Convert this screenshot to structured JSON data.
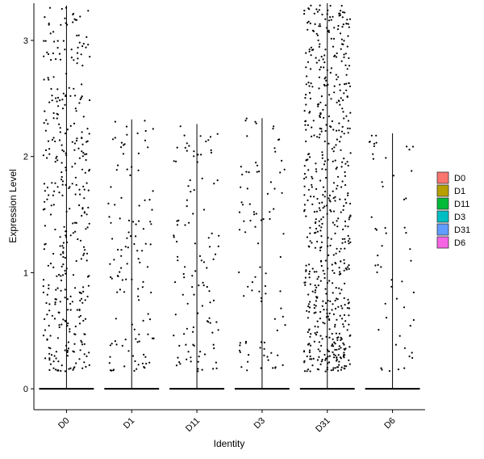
{
  "chart_data": {
    "type": "scatter",
    "plot_style": "violin-jitter",
    "title": "",
    "xlabel": "Identity",
    "ylabel": "Expression Level",
    "ylim": [
      -0.18,
      3.32
    ],
    "y_ticks": [
      0,
      1,
      2,
      3
    ],
    "grid": false,
    "legend": "right",
    "categories": [
      "D0",
      "D1",
      "D11",
      "D3",
      "D31",
      "D6"
    ],
    "legend_entries": [
      {
        "label": "D0",
        "color": "#F8766D"
      },
      {
        "label": "D1",
        "color": "#B79F00"
      },
      {
        "label": "D11",
        "color": "#00BA38"
      },
      {
        "label": "D3",
        "color": "#00BFC4"
      },
      {
        "label": "D31",
        "color": "#619CFF"
      },
      {
        "label": "D6",
        "color": "#F564E3"
      }
    ],
    "series": [
      {
        "category": "D0",
        "max": 3.3,
        "points_nonzero": 380
      },
      {
        "category": "D1",
        "max": 2.32,
        "points_nonzero": 120
      },
      {
        "category": "D11",
        "max": 2.28,
        "points_nonzero": 110
      },
      {
        "category": "D3",
        "max": 2.33,
        "points_nonzero": 90
      },
      {
        "category": "D31",
        "max": 3.32,
        "points_nonzero": 620
      },
      {
        "category": "D6",
        "max": 2.2,
        "points_nonzero": 55
      }
    ],
    "point_color": "#000000"
  }
}
